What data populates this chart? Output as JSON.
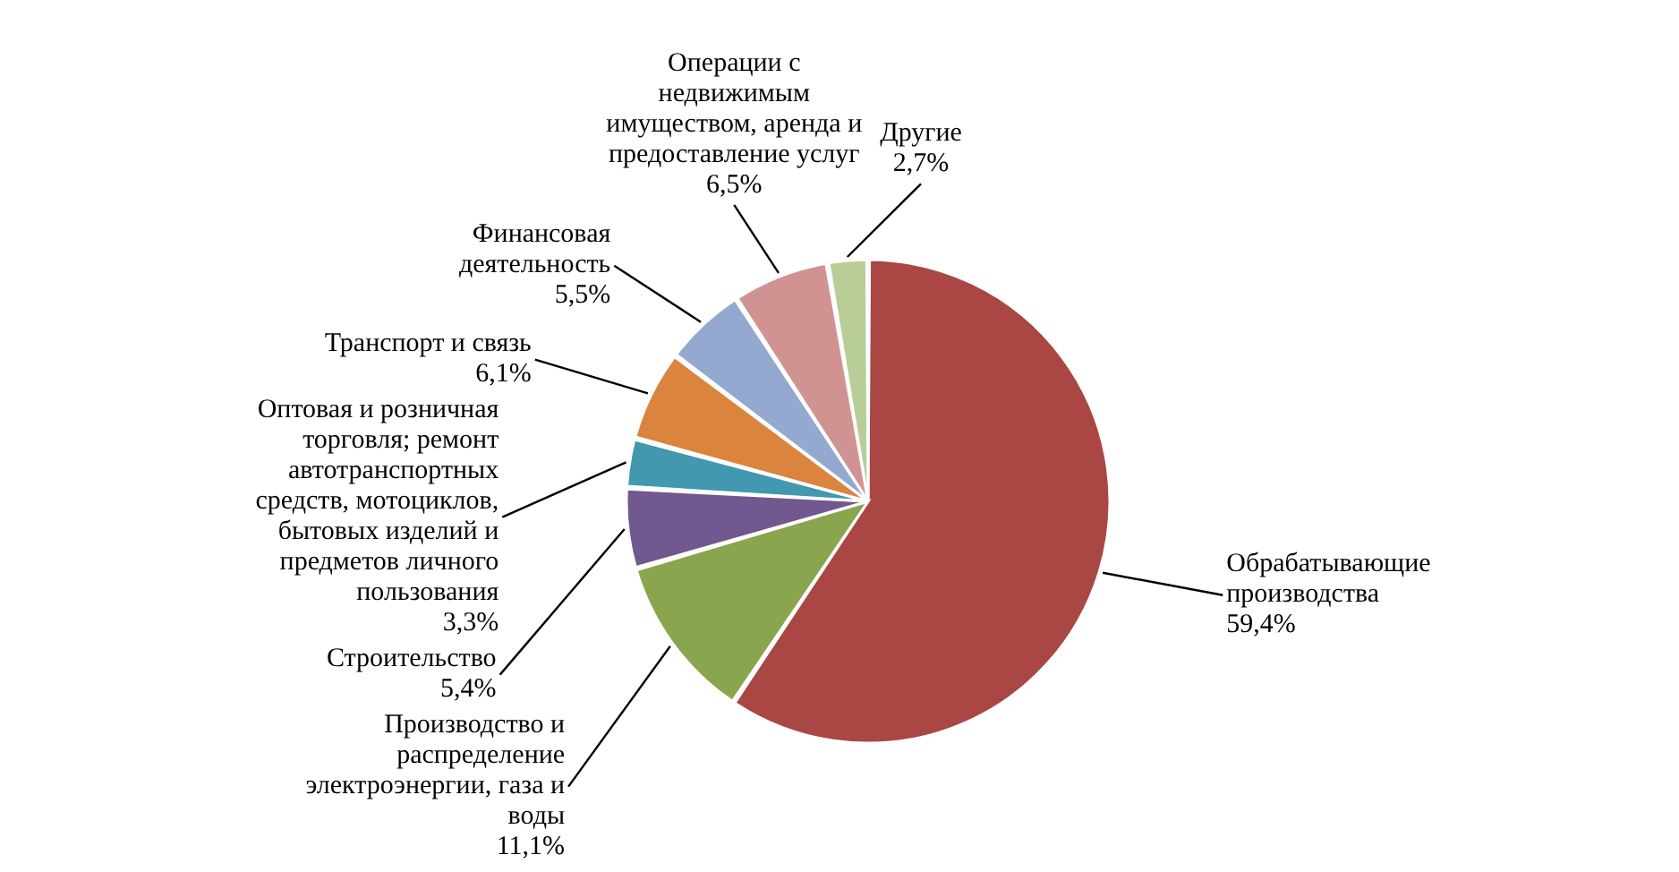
{
  "chart_data": {
    "type": "pie",
    "categories": [
      "Обрабатывающие производства",
      "Производство и распределение электроэнергии, газа и воды",
      "Строительство",
      "Оптовая и розничная торговля; ремонт автотранспортных средств, мотоциклов, бытовых изделий и предметов личного пользования",
      "Транспорт и связь",
      "Финансовая деятельность",
      "Операции с недвижимым имуществом, аренда и предоставление услуг",
      "Другие"
    ],
    "values": [
      59.4,
      11.1,
      5.4,
      3.3,
      6.1,
      5.5,
      6.5,
      2.7
    ],
    "colors": [
      "#aa4643",
      "#89a54e",
      "#71588f",
      "#4198af",
      "#db843d",
      "#93a9cf",
      "#d19392",
      "#b9cd96"
    ],
    "value_labels": [
      "59,4%",
      "11,1%",
      "5,4%",
      "3,3%",
      "6,1%",
      "5,5%",
      "6,5%",
      "2,7%"
    ]
  }
}
